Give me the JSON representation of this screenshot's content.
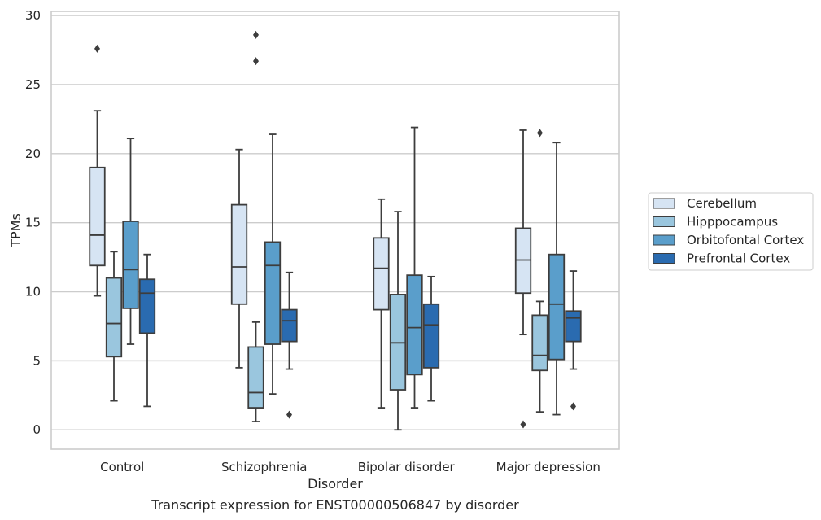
{
  "chart_data": {
    "type": "boxplot",
    "categories": [
      "Control",
      "Schizophrenia",
      "Bipolar disorder",
      "Major depression"
    ],
    "xlabel": "Disorder",
    "ylabel": "TPMs",
    "caption": "Transcript expression for ENST00000506847 by disorder",
    "ylim": [
      -1.4,
      30.3
    ],
    "yticks": [
      0,
      5,
      10,
      15,
      20,
      25,
      30
    ],
    "grid": "horizontal",
    "legend_position": "right",
    "series": [
      {
        "name": "Cerebellum",
        "color": "#d6e4f3",
        "boxes": [
          {
            "whisker_low": 9.7,
            "q1": 11.9,
            "median": 14.1,
            "q3": 19.0,
            "whisker_high": 23.1,
            "outliers": [
              27.6
            ]
          },
          {
            "whisker_low": 4.5,
            "q1": 9.1,
            "median": 11.8,
            "q3": 16.3,
            "whisker_high": 20.3,
            "outliers": []
          },
          {
            "whisker_low": 1.6,
            "q1": 8.7,
            "median": 11.7,
            "q3": 13.9,
            "whisker_high": 16.7,
            "outliers": []
          },
          {
            "whisker_low": 6.9,
            "q1": 9.9,
            "median": 12.3,
            "q3": 14.6,
            "whisker_high": 21.7,
            "outliers": [
              0.4
            ]
          }
        ]
      },
      {
        "name": "Hipppocampus",
        "color": "#9ac6de",
        "boxes": [
          {
            "whisker_low": 2.1,
            "q1": 5.3,
            "median": 7.7,
            "q3": 11.0,
            "whisker_high": 12.9,
            "outliers": []
          },
          {
            "whisker_low": 0.6,
            "q1": 1.6,
            "median": 2.7,
            "q3": 6.0,
            "whisker_high": 7.8,
            "outliers": [
              28.6,
              26.7
            ]
          },
          {
            "whisker_low": 0.0,
            "q1": 2.9,
            "median": 6.3,
            "q3": 9.8,
            "whisker_high": 15.8,
            "outliers": []
          },
          {
            "whisker_low": 1.3,
            "q1": 4.3,
            "median": 5.4,
            "q3": 8.3,
            "whisker_high": 9.3,
            "outliers": [
              21.5
            ]
          }
        ]
      },
      {
        "name": "Orbitofontal Cortex",
        "color": "#5a9ecb",
        "boxes": [
          {
            "whisker_low": 6.2,
            "q1": 8.8,
            "median": 11.6,
            "q3": 15.1,
            "whisker_high": 21.1,
            "outliers": []
          },
          {
            "whisker_low": 2.6,
            "q1": 6.2,
            "median": 11.9,
            "q3": 13.6,
            "whisker_high": 21.4,
            "outliers": []
          },
          {
            "whisker_low": 1.6,
            "q1": 4.0,
            "median": 7.4,
            "q3": 11.2,
            "whisker_high": 21.9,
            "outliers": []
          },
          {
            "whisker_low": 1.1,
            "q1": 5.1,
            "median": 9.1,
            "q3": 12.7,
            "whisker_high": 20.8,
            "outliers": []
          }
        ]
      },
      {
        "name": "Prefrontal Cortex",
        "color": "#2a6bb0",
        "boxes": [
          {
            "whisker_low": 1.7,
            "q1": 7.0,
            "median": 9.9,
            "q3": 10.9,
            "whisker_high": 12.7,
            "outliers": []
          },
          {
            "whisker_low": 4.4,
            "q1": 6.4,
            "median": 7.9,
            "q3": 8.7,
            "whisker_high": 11.4,
            "outliers": [
              1.1
            ]
          },
          {
            "whisker_low": 2.1,
            "q1": 4.5,
            "median": 7.6,
            "q3": 9.1,
            "whisker_high": 11.1,
            "outliers": []
          },
          {
            "whisker_low": 4.4,
            "q1": 6.4,
            "median": 8.1,
            "q3": 8.6,
            "whisker_high": 11.5,
            "outliers": [
              1.7
            ]
          }
        ]
      }
    ]
  }
}
